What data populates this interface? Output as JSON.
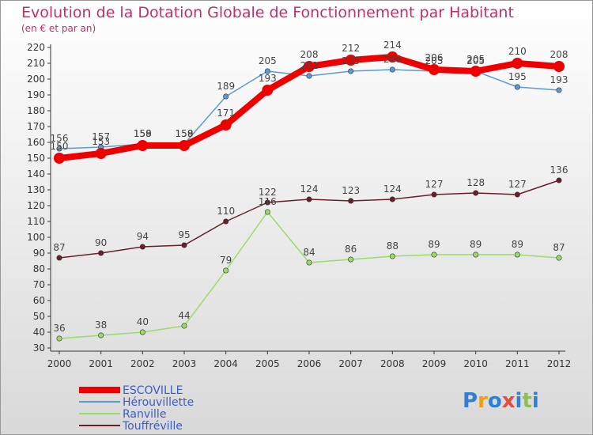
{
  "chart_data": {
    "type": "line",
    "title": "Evolution de la Dotation Globale de Fonctionnement par Habitant",
    "subtitle": "(en € et par an)",
    "categories": [
      "2000",
      "2001",
      "2002",
      "2003",
      "2004",
      "2005",
      "2006",
      "2007",
      "2008",
      "2009",
      "2010",
      "2011",
      "2012"
    ],
    "ylim": [
      30,
      220
    ],
    "ytick_step": 10,
    "grid": false,
    "legend_position": "bottom-left",
    "series": [
      {
        "name": "Hérouvillette",
        "color": "#5b9bd5",
        "values": [
          156,
          157,
          159,
          159,
          189,
          205,
          202,
          205,
          206,
          205,
          205,
          195,
          193
        ]
      },
      {
        "name": "Ranville",
        "color": "#99dd66",
        "values": [
          36,
          38,
          40,
          44,
          79,
          116,
          84,
          86,
          88,
          89,
          89,
          89,
          87
        ]
      },
      {
        "name": "Touffréville",
        "color": "#6b1e2a",
        "values": [
          87,
          90,
          94,
          95,
          110,
          122,
          124,
          123,
          124,
          127,
          128,
          127,
          136
        ]
      },
      {
        "name": "ESCOVILLE",
        "color": "#ee0000",
        "values": [
          150,
          153,
          158,
          158,
          171,
          193,
          208,
          212,
          214,
          206,
          205,
          210,
          208
        ]
      }
    ]
  },
  "legend_items": [
    "ESCOVILLE",
    "Hérouvillette",
    "Ranville",
    "Touffréville"
  ],
  "brand": {
    "letters": [
      "P",
      "r",
      "o",
      "x",
      "i",
      "t",
      "i"
    ],
    "colors": [
      "#2f7fd6",
      "#f39c12",
      "#2f7fd6",
      "#e74c3c",
      "#2f7fd6",
      "#8bc34a",
      "#2f7fd6"
    ]
  }
}
